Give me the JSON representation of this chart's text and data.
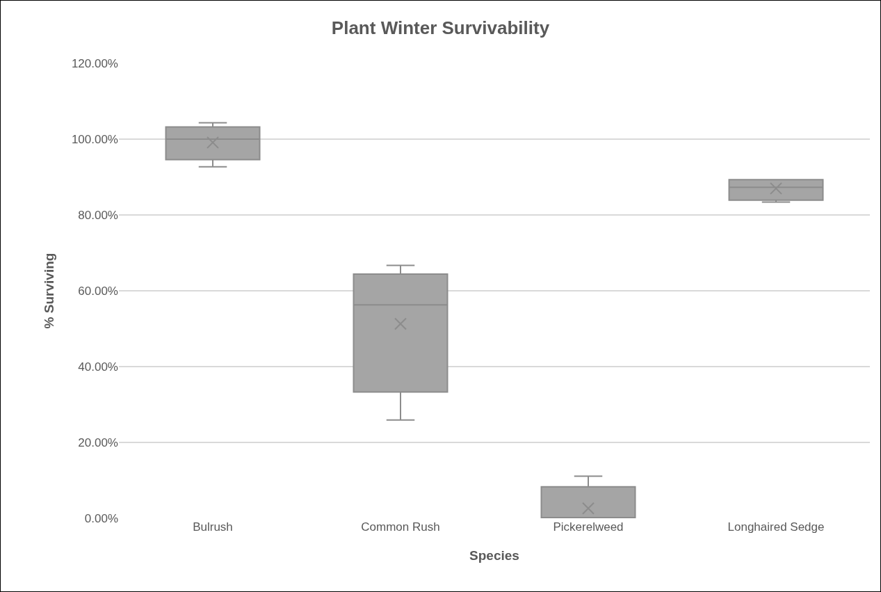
{
  "chart_data": {
    "type": "box",
    "title": "Plant Winter Survivability",
    "xlabel": "Species",
    "ylabel": "% Surviving",
    "categories": [
      "Bulrush",
      "Common Rush",
      "Pickerelweed",
      "Longhaired Sedge"
    ],
    "color": "#a5a5a5",
    "boxes": [
      {
        "low": 92.7,
        "q1": 94.6,
        "median": 100,
        "q3": 103.2,
        "high": 104.3,
        "mean": 99.1
      },
      {
        "low": 25.9,
        "q1": 33.3,
        "median": 56.3,
        "q3": 64.4,
        "high": 66.7,
        "mean": 51.3
      },
      {
        "low": 0,
        "q1": 0,
        "median": 0,
        "q3": 8.3,
        "high": 11.1,
        "mean": 2.6
      },
      {
        "low": 83.4,
        "q1": 83.9,
        "median": 87.3,
        "q3": 89.3,
        "high": 89.3,
        "mean": 87
      }
    ],
    "ylim": [
      0,
      120
    ],
    "yticks": [
      {
        "value": 0,
        "label": "0.00%"
      },
      {
        "value": 20,
        "label": "20.00%"
      },
      {
        "value": 40,
        "label": "40.00%"
      },
      {
        "value": 60,
        "label": "60.00%"
      },
      {
        "value": 80,
        "label": "80.00%"
      },
      {
        "value": 100,
        "label": "100.00%"
      },
      {
        "value": 120,
        "label": "120.00%"
      }
    ],
    "grid": "y",
    "marker": "cross"
  }
}
